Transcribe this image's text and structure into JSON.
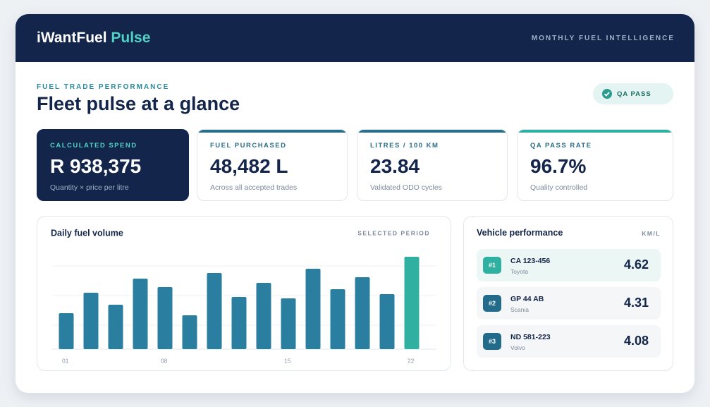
{
  "header": {
    "brand": "iWantFuel",
    "brand_accent": "Pulse",
    "tagline": "MONTHLY FUEL INTELLIGENCE"
  },
  "section": {
    "eyebrow": "FUEL TRADE PERFORMANCE",
    "title": "Fleet pulse at a glance",
    "badge": "QA PASS"
  },
  "kpis": [
    {
      "label": "CALCULATED SPEND",
      "value": "R 938,375",
      "note": "Quantity × price per litre"
    },
    {
      "label": "FUEL PURCHASED",
      "value": "48,482 L",
      "note": "Across all accepted trades"
    },
    {
      "label": "LITRES / 100 KM",
      "value": "23.84",
      "note": "Validated ODO cycles"
    },
    {
      "label": "QA PASS RATE",
      "value": "96.7%",
      "note": "Quality controlled"
    }
  ],
  "chart_data": {
    "type": "bar",
    "title": "Daily fuel volume",
    "subtitle": "SELECTED PERIOD",
    "categories": [
      "01",
      null,
      null,
      null,
      "08",
      null,
      null,
      null,
      null,
      "15",
      null,
      null,
      null,
      null,
      "22"
    ],
    "series": [
      {
        "name": "Daily fuel volume",
        "color": "#2a7fa0",
        "values": [
          51,
          80,
          63,
          100,
          88,
          48,
          108,
          74,
          94,
          72,
          114,
          85,
          102,
          78,
          131
        ],
        "colors": [
          "#2a7fa0",
          "#2a7fa0",
          "#2a7fa0",
          "#2a7fa0",
          "#2a7fa0",
          "#2a7fa0",
          "#2a7fa0",
          "#2a7fa0",
          "#2a7fa0",
          "#2a7fa0",
          "#2a7fa0",
          "#2a7fa0",
          "#2a7fa0",
          "#2a7fa0",
          "#2fb0a0"
        ]
      }
    ],
    "grid": true
  },
  "vehicles": {
    "title": "Vehicle performance",
    "unit": "KM/L",
    "rows": [
      {
        "rank": "#1",
        "plate": "CA 123-456",
        "make": "Toyota",
        "value": "4.62"
      },
      {
        "rank": "#2",
        "plate": "GP 44 AB",
        "make": "Scania",
        "value": "4.31"
      },
      {
        "rank": "#3",
        "plate": "ND 581-223",
        "make": "Volvo",
        "value": "4.08"
      }
    ]
  }
}
